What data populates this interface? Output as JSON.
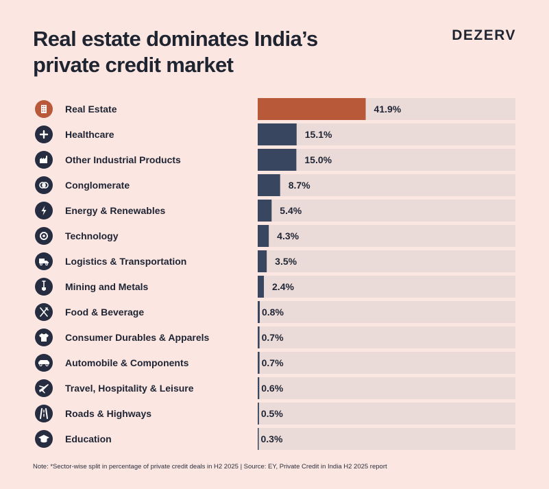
{
  "header": {
    "title_line1": "Real estate dominates India’s",
    "title_line2": "private credit market",
    "brand": "DEZERV"
  },
  "colors": {
    "highlight": "#b8593a",
    "bar": "#394660",
    "track": "#ebdbd8",
    "icon_bg": "#262d40"
  },
  "chart_data": {
    "type": "bar",
    "orientation": "horizontal",
    "value_suffix": "%",
    "xlim": [
      0,
      100
    ],
    "categories": [
      "Real Estate",
      "Healthcare",
      "Other Industrial Products",
      "Conglomerate",
      "Energy & Renewables",
      "Technology",
      "Logistics & Transportation",
      "Mining and Metals",
      "Food & Beverage",
      "Consumer Durables & Apparels",
      "Automobile & Components",
      "Travel, Hospitality & Leisure",
      "Roads & Highways",
      "Education"
    ],
    "values": [
      41.9,
      15.1,
      15.0,
      8.7,
      5.4,
      4.3,
      3.5,
      2.4,
      0.8,
      0.7,
      0.7,
      0.6,
      0.5,
      0.3
    ],
    "labels": [
      "41.9%",
      "15.1%",
      "15.0%",
      "8.7%",
      "5.4%",
      "4.3%",
      "3.5%",
      "2.4%",
      "0.8%",
      "0.7%",
      "0.7%",
      "0.6%",
      "0.5%",
      "0.3%"
    ],
    "icons": [
      "building-icon",
      "plus-icon",
      "factory-icon",
      "conglomerate-icon",
      "lightning-icon",
      "gear-icon",
      "truck-icon",
      "shovel-icon",
      "fork-knife-icon",
      "tshirt-icon",
      "car-icon",
      "airplane-icon",
      "road-icon",
      "graduation-cap-icon"
    ],
    "highlight_index": 0
  },
  "footer": {
    "note": "Note: *Sector-wise split in percentage of private credit deals in H2 2025 | Source: EY, Private Credit in India H2 2025 report"
  }
}
